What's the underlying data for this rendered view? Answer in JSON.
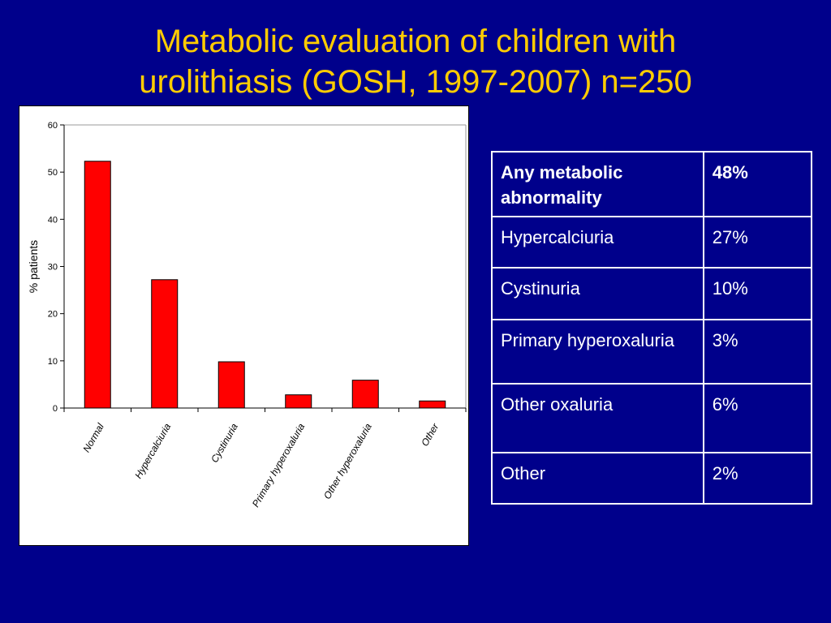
{
  "slide": {
    "title_line1": "Metabolic evaluation  of children with",
    "title_line2": "urolithiasis (GOSH, 1997-2007) n=250"
  },
  "chart_data": {
    "type": "bar",
    "categories": [
      "Normal",
      "Hypercalciuria",
      "Cystinuria",
      "Primary hyperoxaluria",
      "Other hyperoxaluria",
      "Other"
    ],
    "values": [
      52.3,
      27.2,
      9.8,
      2.8,
      5.9,
      1.5
    ],
    "ylabel": "% patients",
    "xlabel": "",
    "ylim": [
      0,
      60
    ],
    "yticks": [
      "0",
      "10",
      "20",
      "30",
      "40",
      "50",
      "60"
    ],
    "bar_color": "#ff0000",
    "grid": false
  },
  "table": {
    "rows": [
      {
        "label": "Any metabolic abnormality",
        "value": "48%",
        "bold": true
      },
      {
        "label": "Hypercalciuria",
        "value": "27%",
        "bold": false
      },
      {
        "label": "Cystinuria",
        "value": "10%",
        "bold": false
      },
      {
        "label": "Primary hyperoxaluria",
        "value": "3%",
        "bold": false
      },
      {
        "label": "Other oxaluria",
        "value": "6%",
        "bold": false
      },
      {
        "label": "Other",
        "value": "2%",
        "bold": false
      }
    ]
  },
  "colors": {
    "background": "#00008b",
    "title": "#ffcc00",
    "table_text": "#ffffff"
  }
}
